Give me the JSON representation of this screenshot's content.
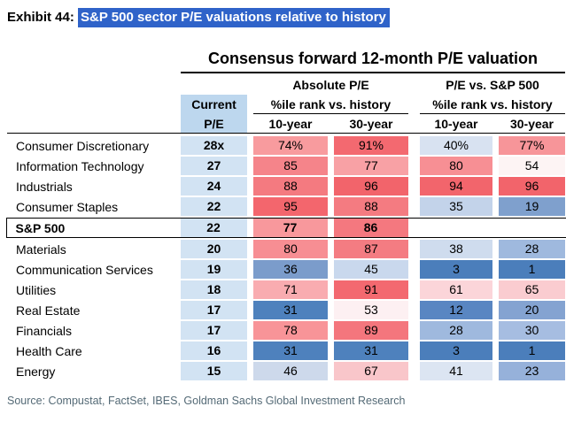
{
  "exhibit": {
    "prefix": "Exhibit 44:",
    "title": "S&P 500 sector P/E valuations relative to history",
    "highlight_color": "#2f63c9"
  },
  "header": {
    "table_title": "Consensus forward 12-month P/E valuation",
    "group_absolute": "Absolute P/E",
    "group_relative": "P/E vs. S&P 500",
    "subheader": "%ile rank vs. history",
    "current_line1": "Current",
    "current_line2": "P/E",
    "col_10yr": "10-year",
    "col_30yr": "30-year",
    "current_header_bg": "#BDD7EE",
    "current_cell_bg": "#D2E3F3"
  },
  "source": "Source: Compustat, FactSet, IBES, Goldman Sachs Global Investment Research",
  "chart_data": {
    "type": "heatmap",
    "title": "Consensus forward 12-month P/E valuation",
    "column_groups": [
      "Absolute P/E — %ile rank vs. history",
      "P/E vs. S&P 500 — %ile rank vs. history"
    ],
    "columns": [
      "Current P/E",
      "Absolute 10-year",
      "Absolute 30-year",
      "Relative 10-year",
      "Relative 30-year"
    ],
    "percent_suffix_on_first_row": true,
    "color_scale": {
      "low": "#4E81BD",
      "mid": "#FFFFFF",
      "high": "#F2646B"
    },
    "rows": [
      {
        "sector": "Consumer Discretionary",
        "current_pe": "28x",
        "abs_10yr": 74,
        "abs_30yr": 91,
        "rel_10yr": 40,
        "rel_30yr": 77,
        "highlight": false
      },
      {
        "sector": "Information Technology",
        "current_pe": "27",
        "abs_10yr": 85,
        "abs_30yr": 77,
        "rel_10yr": 80,
        "rel_30yr": 54,
        "highlight": false
      },
      {
        "sector": "Industrials",
        "current_pe": "24",
        "abs_10yr": 88,
        "abs_30yr": 96,
        "rel_10yr": 94,
        "rel_30yr": 96,
        "highlight": false
      },
      {
        "sector": "Consumer Staples",
        "current_pe": "22",
        "abs_10yr": 95,
        "abs_30yr": 88,
        "rel_10yr": 35,
        "rel_30yr": 19,
        "highlight": false
      },
      {
        "sector": "S&P 500",
        "current_pe": "22",
        "abs_10yr": 77,
        "abs_30yr": 86,
        "rel_10yr": null,
        "rel_30yr": null,
        "highlight": true
      },
      {
        "sector": "Materials",
        "current_pe": "20",
        "abs_10yr": 80,
        "abs_30yr": 87,
        "rel_10yr": 38,
        "rel_30yr": 28,
        "highlight": false
      },
      {
        "sector": "Communication Services",
        "current_pe": "19",
        "abs_10yr": 36,
        "abs_30yr": 45,
        "rel_10yr": 3,
        "rel_30yr": 1,
        "highlight": false
      },
      {
        "sector": "Utilities",
        "current_pe": "18",
        "abs_10yr": 71,
        "abs_30yr": 91,
        "rel_10yr": 61,
        "rel_30yr": 65,
        "highlight": false
      },
      {
        "sector": "Real Estate",
        "current_pe": "17",
        "abs_10yr": 31,
        "abs_30yr": 53,
        "rel_10yr": 12,
        "rel_30yr": 20,
        "highlight": false
      },
      {
        "sector": "Financials",
        "current_pe": "17",
        "abs_10yr": 78,
        "abs_30yr": 89,
        "rel_10yr": 28,
        "rel_30yr": 30,
        "highlight": false
      },
      {
        "sector": "Health Care",
        "current_pe": "16",
        "abs_10yr": 31,
        "abs_30yr": 31,
        "rel_10yr": 3,
        "rel_30yr": 1,
        "highlight": false
      },
      {
        "sector": "Energy",
        "current_pe": "15",
        "abs_10yr": 46,
        "abs_30yr": 67,
        "rel_10yr": 41,
        "rel_30yr": 23,
        "highlight": false
      }
    ],
    "cell_colors": {
      "abs_10yr": [
        "#F89B9E",
        "#F5848A",
        "#F47A80",
        "#F3666D",
        "#F8989C",
        "#F78E93",
        "#7B9CCB",
        "#F9ACB0",
        "#4E81BD",
        "#F89498",
        "#4E81BD",
        "#CDD9EB"
      ],
      "abs_30yr": [
        "#F36970",
        "#F8A1A5",
        "#F2646B",
        "#F47B81",
        "#F4787F",
        "#F47C82",
        "#C9D8ED",
        "#F36970",
        "#FDF0F2",
        "#F4767D",
        "#4E81BD",
        "#F9C6CA"
      ],
      "rel_10yr": [
        "#D8E2F1",
        "#F78F94",
        "#F2656C",
        "#C3D3EA",
        "",
        "#CFDCEE",
        "#4B7EBB",
        "#FBD5D9",
        "#5986C2",
        "#9FB9DE",
        "#4B7EBB",
        "#DCE5F2"
      ],
      "rel_30yr": [
        "#F79599",
        "#FDF4F4",
        "#F2646B",
        "#7FA0CD",
        "",
        "#9FB9DE",
        "#4B7EBB",
        "#FACCD0",
        "#84A3D1",
        "#A6BDE1",
        "#4B7EBB",
        "#96B1DA"
      ]
    }
  }
}
